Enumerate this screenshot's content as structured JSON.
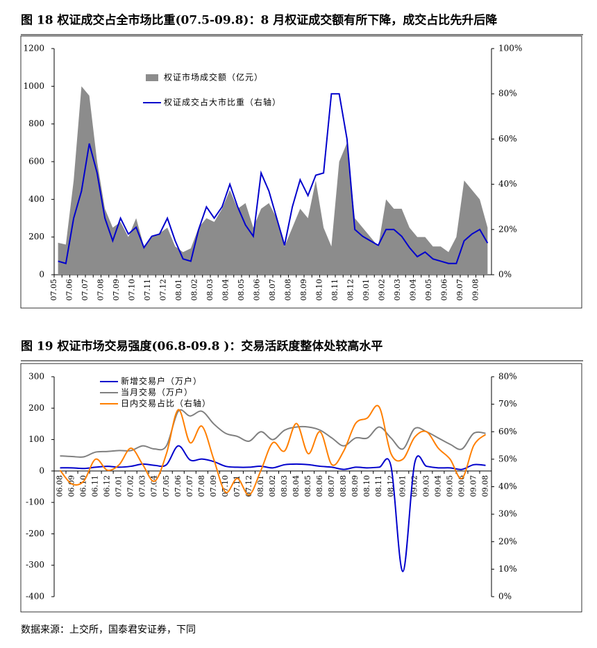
{
  "chart_data": [
    {
      "type": "area",
      "title": "图 18 权证成交占全市场比重(07.5-09.8)：8 月权证成交额有所下降，成交占比先升后降",
      "categories": [
        "07.05",
        null,
        "07.06",
        null,
        "07.07",
        null,
        "07.08",
        null,
        "07.09",
        null,
        "07.10",
        null,
        "07.11",
        null,
        "07.12",
        null,
        "08.01",
        null,
        "08.02",
        null,
        "08.03",
        null,
        "08.04",
        null,
        "08.05",
        null,
        "08.06",
        null,
        "08.07",
        null,
        "08.08",
        null,
        "08.09",
        null,
        "08.10",
        null,
        "08.11",
        null,
        "08.12",
        null,
        "09.01",
        null,
        "09.02",
        null,
        "09.03",
        null,
        "09.04",
        null,
        "09.05",
        null,
        "09.06",
        null,
        "09.07",
        null,
        "09.08",
        null
      ],
      "series": [
        {
          "name": "权证市场成交额（亿元）",
          "type": "area",
          "color": "#8c8c8c",
          "values": [
            170,
            160,
            500,
            1000,
            950,
            600,
            350,
            250,
            280,
            200,
            300,
            150,
            200,
            220,
            250,
            150,
            120,
            140,
            250,
            300,
            280,
            350,
            450,
            350,
            380,
            250,
            350,
            380,
            300,
            150,
            250,
            350,
            300,
            500,
            250,
            150,
            600,
            700,
            300,
            250,
            200,
            150,
            400,
            350,
            350,
            250,
            200,
            200,
            150,
            150,
            120,
            200,
            500,
            450,
            400,
            250
          ]
        },
        {
          "name": "权证成交占大市比重（右轴）",
          "type": "line",
          "axis": "y2",
          "color": "#0000cc",
          "values": [
            6,
            5,
            25,
            37,
            58,
            45,
            25,
            15,
            25,
            18,
            21,
            12,
            17,
            18,
            25,
            15,
            7,
            6,
            20,
            30,
            25,
            30,
            40,
            30,
            22,
            17,
            45,
            37,
            25,
            13,
            30,
            42,
            35,
            44,
            45,
            80,
            80,
            60,
            20,
            17,
            15,
            13,
            20,
            20,
            17,
            12,
            8,
            10,
            7,
            6,
            5,
            5,
            15,
            18,
            20,
            14
          ]
        }
      ],
      "ylim": [
        0,
        1200
      ],
      "yticks": [
        0,
        200,
        400,
        600,
        800,
        1000,
        1200
      ],
      "y2lim": [
        0,
        100
      ],
      "y2ticks": [
        {
          "value": 0,
          "label": "0%"
        },
        {
          "value": 20,
          "label": "20%"
        },
        {
          "value": 40,
          "label": "40%"
        },
        {
          "value": 60,
          "label": "60%"
        },
        {
          "value": 80,
          "label": "80%"
        },
        {
          "value": 100,
          "label": "100%"
        }
      ],
      "legend": "top"
    },
    {
      "type": "line",
      "title": "图 19 权证市场交易强度(06.8-09.8 )：交易活跃度整体处较高水平",
      "categories": [
        "06.08",
        "06.09",
        "06.10",
        "06.11",
        "06.12",
        "07.01",
        "07.02",
        "07.03",
        "07.04",
        "07.05",
        "07.06",
        "07.07",
        "07.08",
        "07.09",
        "07.10",
        "07.11",
        "07.12",
        "08.01",
        "08.02",
        "08.03",
        "08.04",
        "08.05",
        "08.06",
        "08.07",
        "08.08",
        "08.09",
        "08.10",
        "08.11",
        "08.12",
        "09.01",
        "09.02",
        "09.03",
        "09.04",
        "09.05",
        "09.06",
        "09.07",
        "09.08"
      ],
      "series": [
        {
          "name": "新增交易户（万户）",
          "type": "line",
          "color": "#0000cc",
          "values": [
            10,
            10,
            8,
            12,
            15,
            12,
            15,
            22,
            18,
            20,
            80,
            35,
            38,
            30,
            15,
            12,
            12,
            15,
            10,
            20,
            22,
            20,
            15,
            12,
            5,
            12,
            10,
            12,
            15,
            -320,
            25,
            15,
            10,
            10,
            5,
            20,
            18
          ]
        },
        {
          "name": "当月交易（万户）",
          "type": "line",
          "color": "#808080",
          "values": [
            48,
            46,
            45,
            60,
            62,
            65,
            65,
            80,
            70,
            80,
            190,
            175,
            190,
            150,
            120,
            110,
            95,
            125,
            100,
            130,
            140,
            140,
            130,
            105,
            80,
            105,
            105,
            140,
            105,
            70,
            135,
            125,
            105,
            85,
            70,
            120,
            120
          ]
        },
        {
          "name": "日内交易占比（右轴）",
          "type": "line",
          "axis": "y2",
          "color": "#ff7f00",
          "values": [
            46,
            41,
            42,
            50,
            46,
            48,
            54,
            48,
            42,
            52,
            68,
            56,
            62,
            50,
            38,
            43,
            37,
            46,
            56,
            53,
            63,
            52,
            60,
            48,
            53,
            63,
            65,
            69,
            52,
            50,
            58,
            60,
            54,
            50,
            43,
            55,
            59
          ]
        }
      ],
      "ylim": [
        -400,
        300
      ],
      "yticks": [
        -400,
        -300,
        -200,
        -100,
        0,
        100,
        200,
        300
      ],
      "y2lim": [
        0,
        80
      ],
      "y2ticks": [
        {
          "value": 0,
          "label": "0%"
        },
        {
          "value": 10,
          "label": "10%"
        },
        {
          "value": 20,
          "label": "20%"
        },
        {
          "value": 30,
          "label": "30%"
        },
        {
          "value": 40,
          "label": "40%"
        },
        {
          "value": 50,
          "label": "50%"
        },
        {
          "value": 60,
          "label": "60%"
        },
        {
          "value": 70,
          "label": "70%"
        },
        {
          "value": 80,
          "label": "80%"
        }
      ],
      "legend": "upper left"
    }
  ],
  "source": "数据来源：上交所，国泰君安证券，下同"
}
